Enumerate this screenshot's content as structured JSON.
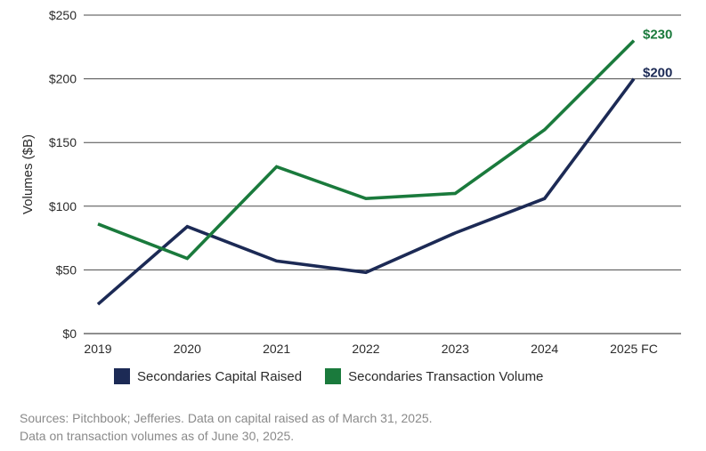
{
  "chart_data": {
    "type": "line",
    "title": "",
    "xlabel": "",
    "ylabel": "Volumes ($B)",
    "categories": [
      "2019",
      "2020",
      "2021",
      "2022",
      "2023",
      "2024",
      "2025 FC"
    ],
    "ylim": [
      0,
      250
    ],
    "yticks": [
      0,
      50,
      100,
      150,
      200,
      250
    ],
    "ytick_labels": [
      "$0",
      "$50",
      "$100",
      "$150",
      "$200",
      "$250"
    ],
    "grid": true,
    "legend_position": "bottom",
    "series": [
      {
        "name": "Secondaries Capital Raised",
        "color": "#1c2a55",
        "values": [
          23,
          84,
          57,
          48,
          79,
          106,
          200
        ],
        "end_label": "$200"
      },
      {
        "name": "Secondaries Transaction Volume",
        "color": "#1a7a3c",
        "values": [
          86,
          59,
          131,
          106,
          110,
          160,
          230
        ],
        "end_label": "$230"
      }
    ]
  },
  "footer": {
    "source_line1": "Sources: Pitchbook; Jefferies. Data on capital raised as of March 31, 2025.",
    "source_line2": "Data on transaction volumes as of June 30, 2025."
  }
}
